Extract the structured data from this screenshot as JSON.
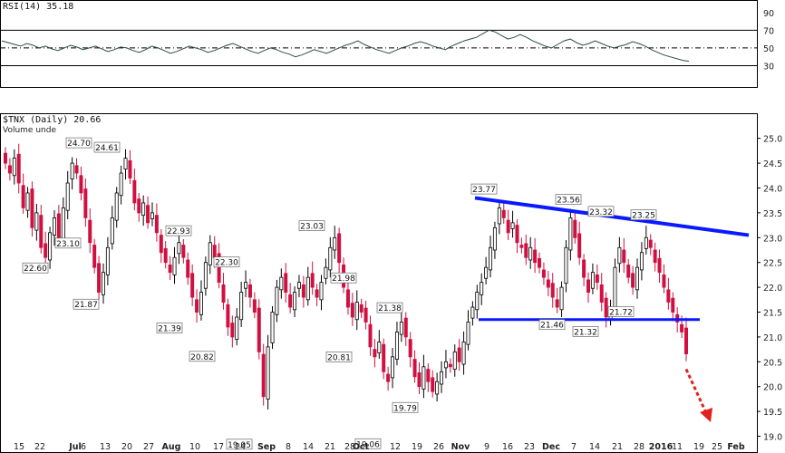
{
  "chart_data": [
    {
      "type": "line",
      "title": "RSI(14) 35.18",
      "series": [
        {
          "name": "RSI(14)",
          "values": [
            58,
            56,
            54,
            52,
            55,
            53,
            50,
            52,
            49,
            47,
            50,
            53,
            51,
            48,
            50,
            52,
            49,
            46,
            48,
            51,
            50,
            47,
            45,
            48,
            52,
            50,
            47,
            44,
            46,
            49,
            52,
            50,
            48,
            45,
            47,
            50,
            53,
            55,
            52,
            49,
            46,
            44,
            47,
            50,
            48,
            45,
            43,
            40,
            42,
            45,
            48,
            46,
            44,
            47,
            50,
            53,
            55,
            58,
            54,
            51,
            48,
            46,
            44,
            47,
            50,
            52,
            55,
            57,
            55,
            52,
            50,
            48,
            52,
            55,
            58,
            60,
            62,
            66,
            70,
            68,
            64,
            60,
            62,
            65,
            62,
            58,
            55,
            52,
            50,
            54,
            58,
            60,
            56,
            53,
            55,
            58,
            55,
            52,
            50,
            52,
            54,
            57,
            55,
            52,
            48,
            45,
            42,
            40,
            38,
            36,
            35
          ]
        }
      ],
      "y_ticks": [
        "90",
        "70",
        "50",
        "30"
      ],
      "ylim": [
        10,
        100
      ],
      "reference_lines": [
        70,
        50,
        30
      ],
      "colors": {
        "line": "#2f4f3f",
        "ref": "#000000"
      }
    },
    {
      "type": "candlestick",
      "title": "$TNX (Daily) 20.66",
      "legend": "Volume unde",
      "ylim": [
        18.7,
        25.45
      ],
      "y_ticks": [
        "25.0",
        "24.5",
        "24.0",
        "23.5",
        "23.0",
        "22.5",
        "22.0",
        "21.5",
        "21.0",
        "20.5",
        "20.0",
        "19.5",
        "19.0"
      ],
      "x_labels": [
        "15",
        "22",
        "Jul",
        "6",
        "13",
        "20",
        "27",
        "Aug",
        "10",
        "17",
        "24",
        "Sep",
        "8",
        "14",
        "21",
        "28",
        "Oct",
        "12",
        "19",
        "26",
        "Nov",
        "9",
        "16",
        "23",
        "Dec",
        "7",
        "14",
        "21",
        "28",
        "2016",
        "11",
        "19",
        "25",
        "Feb"
      ],
      "bold_x_labels": [
        "Jul",
        "Aug",
        "Sep",
        "Oct",
        "Nov",
        "Dec",
        "2016",
        "Feb"
      ],
      "callouts": [
        "24.70",
        "24.61",
        "23.10",
        "22.60",
        "21.87",
        "22.93",
        "21.39",
        "22.30",
        "20.82",
        "19.05",
        "23.03",
        "21.98",
        "20.81",
        "19.06",
        "21.38",
        "19.79",
        "23.77",
        "23.56",
        "23.32",
        "23.25",
        "21.46",
        "21.32",
        "21.72"
      ],
      "closes": [
        24.5,
        24.3,
        24.6,
        24.1,
        23.6,
        23.9,
        23.2,
        23.5,
        22.8,
        22.6,
        23.1,
        23.4,
        23.0,
        23.6,
        24.1,
        24.5,
        24.3,
        23.9,
        23.4,
        22.9,
        22.4,
        21.9,
        22.3,
        22.8,
        23.4,
        23.9,
        24.3,
        24.6,
        24.2,
        23.7,
        23.5,
        23.7,
        23.3,
        23.5,
        23.1,
        22.7,
        22.5,
        22.3,
        22.6,
        22.9,
        22.6,
        22.2,
        21.8,
        21.5,
        21.9,
        22.5,
        22.9,
        22.6,
        22.1,
        21.7,
        21.2,
        21.0,
        21.4,
        21.9,
        22.1,
        21.8,
        21.5,
        20.7,
        19.8,
        20.8,
        21.5,
        22.0,
        22.2,
        21.9,
        21.6,
        21.9,
        22.1,
        21.8,
        22.2,
        22.0,
        21.8,
        22.1,
        22.4,
        22.8,
        23.0,
        22.5,
        22.0,
        21.6,
        21.4,
        21.7,
        21.5,
        21.3,
        20.8,
        20.6,
        20.9,
        20.3,
        20.1,
        20.6,
        21.1,
        21.3,
        21.0,
        20.6,
        20.2,
        20.0,
        20.4,
        20.1,
        19.9,
        20.1,
        20.3,
        20.5,
        20.4,
        20.7,
        20.5,
        20.9,
        21.3,
        21.6,
        21.9,
        22.1,
        22.4,
        22.8,
        23.2,
        23.6,
        23.4,
        23.1,
        23.3,
        22.9,
        22.8,
        22.6,
        22.8,
        22.5,
        22.4,
        22.2,
        22.0,
        21.8,
        21.6,
        22.0,
        22.8,
        23.4,
        23.0,
        22.6,
        22.2,
        21.9,
        22.3,
        22.1,
        21.7,
        21.4,
        21.6,
        22.4,
        22.8,
        22.5,
        22.2,
        22.0,
        22.4,
        22.7,
        23.0,
        22.8,
        22.5,
        22.3,
        22.0,
        21.7,
        21.5,
        21.3,
        21.1,
        20.66
      ],
      "support": {
        "level": 21.35,
        "color": "#0a1aff"
      },
      "resistance": {
        "from": 23.8,
        "to": 23.05,
        "color": "#0a1aff"
      },
      "projection_color": "#e02020",
      "colors": {
        "up": "#ffffff",
        "down": "#d01040",
        "outline": "#000000"
      }
    }
  ]
}
